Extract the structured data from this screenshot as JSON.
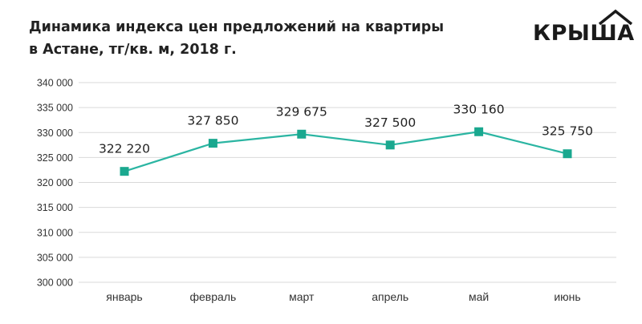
{
  "chart_data": {
    "type": "line",
    "title_lines": [
      "Динамика индекса цен предложений на квартиры",
      "в Астане, тг/кв. м, 2018 г."
    ],
    "categories": [
      "январь",
      "февраль",
      "март",
      "апрель",
      "май",
      "июнь"
    ],
    "values": [
      322220,
      327850,
      329675,
      327500,
      330160,
      325750
    ],
    "data_labels": [
      "322 220",
      "327 850",
      "329 675",
      "327 500",
      "330 160",
      "325 750"
    ],
    "yticks": [
      300000,
      305000,
      310000,
      315000,
      320000,
      325000,
      330000,
      335000,
      340000
    ],
    "ytick_labels": [
      "300 000",
      "305 000",
      "310 000",
      "315 000",
      "320 000",
      "325 000",
      "330 000",
      "335 000",
      "340 000"
    ],
    "ylim": [
      300000,
      340000
    ],
    "xlabel": "",
    "ylabel": "",
    "grid": true,
    "line_color": "#2bb5a2",
    "marker_color": "#1aa88f",
    "grid_color": "#d9d9d9"
  },
  "brand": {
    "logo_text": "КРЫША"
  }
}
